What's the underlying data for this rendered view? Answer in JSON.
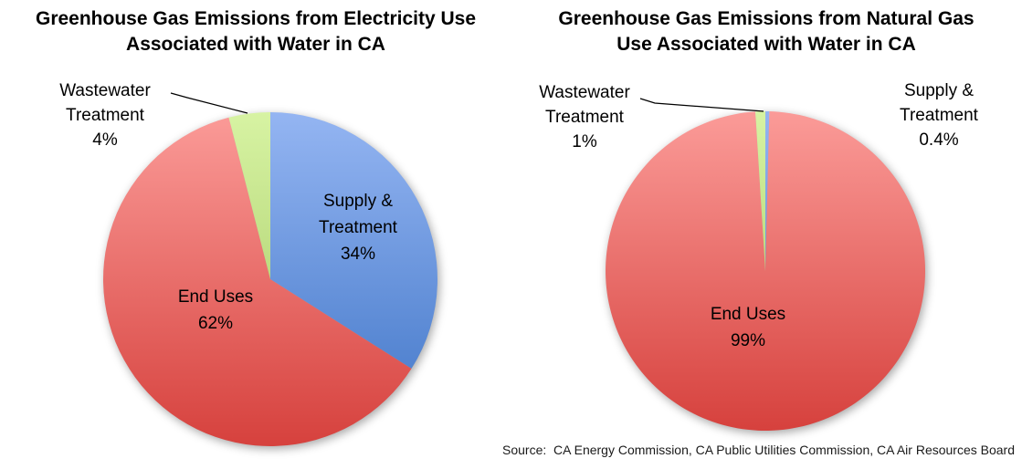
{
  "source_note": "Source:  CA Energy Commission, CA Public Utilities Commission, CA Air Resources Board",
  "chart_data": [
    {
      "type": "pie",
      "title": "Greenhouse Gas Emissions from Electricity Use Associated with Water in CA",
      "title_line1": "Greenhouse Gas Emissions from Electricity Use",
      "title_line2": "Associated with Water in CA",
      "direction": "clockwise",
      "start_angle_deg": 0,
      "legend": "none",
      "unit": "%",
      "slices": [
        {
          "label": "Supply & Treatment",
          "value": 34,
          "percent_text": "34%",
          "label_lines": [
            "Supply &",
            "Treatment",
            "34%"
          ],
          "placement": "inside",
          "color_top": "#94B5F2",
          "color_bottom": "#3E74C6"
        },
        {
          "label": "End Uses",
          "value": 62,
          "percent_text": "62%",
          "label_lines": [
            "End Uses",
            "62%"
          ],
          "placement": "inside",
          "color_top": "#FB9B98",
          "color_bottom": "#D6413D"
        },
        {
          "label": "Wastewater Treatment",
          "value": 4,
          "percent_text": "4%",
          "label_lines": [
            "Wastewater",
            "Treatment",
            "4%"
          ],
          "placement": "outside-callout",
          "color_top": "#D7F3A3",
          "color_bottom": "#9FC45C"
        }
      ]
    },
    {
      "type": "pie",
      "title": "Greenhouse Gas Emissions from Natural Gas Use Associated with Water in CA",
      "title_line1": "Greenhouse Gas Emissions from Natural Gas",
      "title_line2": "Use Associated with Water in CA",
      "direction": "clockwise",
      "start_angle_deg": 0,
      "legend": "none",
      "unit": "%",
      "slices": [
        {
          "label": "Supply & Treatment",
          "value": 0.4,
          "percent_text": "0.4%",
          "label_lines": [
            "Supply &",
            "Treatment",
            "0.4%"
          ],
          "placement": "outside",
          "color_top": "#94B5F2",
          "color_bottom": "#3E74C6"
        },
        {
          "label": "End Uses",
          "value": 99,
          "percent_text": "99%",
          "label_lines": [
            "End Uses",
            "99%"
          ],
          "placement": "inside",
          "color_top": "#FB9B98",
          "color_bottom": "#D6413D"
        },
        {
          "label": "Wastewater Treatment",
          "value": 1,
          "percent_text": "1%",
          "label_lines": [
            "Wastewater",
            "Treatment",
            "1%"
          ],
          "placement": "outside-callout",
          "color_top": "#D7F3A3",
          "color_bottom": "#9FC45C"
        }
      ]
    }
  ]
}
